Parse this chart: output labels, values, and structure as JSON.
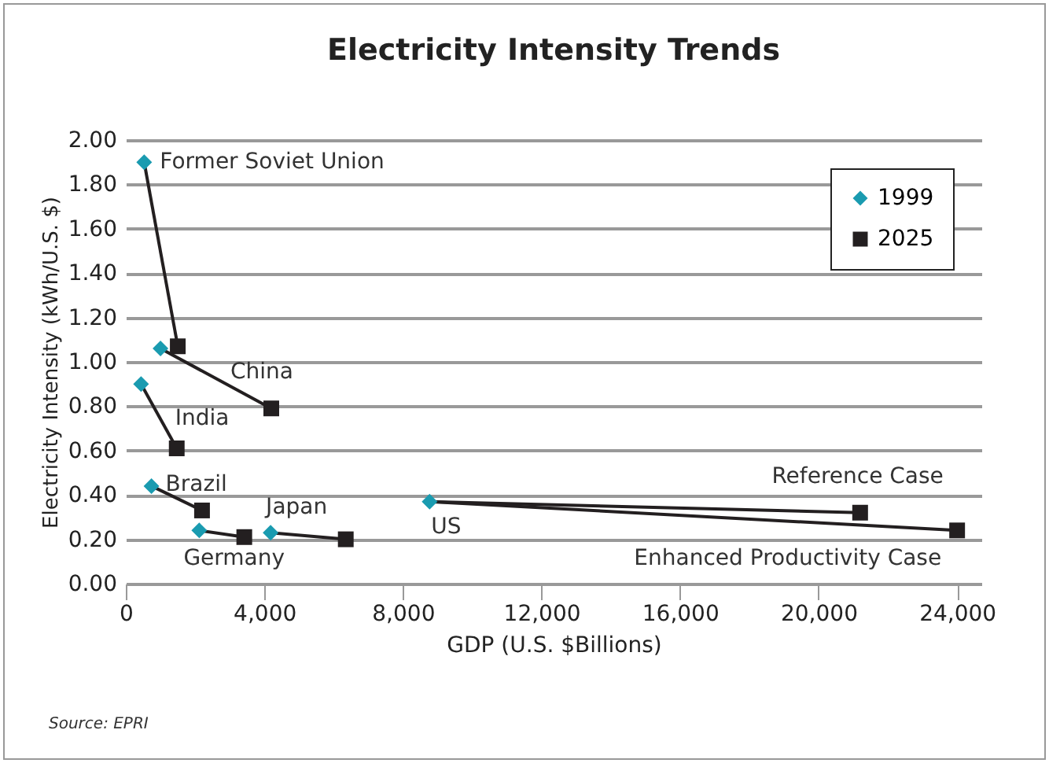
{
  "chart_data": {
    "type": "scatter",
    "title": "Electricity Intensity Trends",
    "xlabel": "GDP (U.S. $Billions)",
    "ylabel": "Electricity Intensity (kWh/U.S. $)",
    "xlim": [
      0,
      24700
    ],
    "ylim": [
      0,
      2.0
    ],
    "xticks": [
      {
        "value": 0,
        "label": "0"
      },
      {
        "value": 4000,
        "label": "4,000"
      },
      {
        "value": 8000,
        "label": "8,000"
      },
      {
        "value": 12000,
        "label": "12,000"
      },
      {
        "value": 16000,
        "label": "16,000"
      },
      {
        "value": 20000,
        "label": "20,000"
      },
      {
        "value": 24000,
        "label": "24,000"
      }
    ],
    "yticks": [
      {
        "value": 0,
        "label": "0.00"
      },
      {
        "value": 0.2,
        "label": "0.20"
      },
      {
        "value": 0.4,
        "label": "0.40"
      },
      {
        "value": 0.6,
        "label": "0.60"
      },
      {
        "value": 0.8,
        "label": "0.80"
      },
      {
        "value": 1.0,
        "label": "1.00"
      },
      {
        "value": 1.2,
        "label": "1.20"
      },
      {
        "value": 1.4,
        "label": "1.40"
      },
      {
        "value": 1.6,
        "label": "1.60"
      },
      {
        "value": 1.8,
        "label": "1.80"
      },
      {
        "value": 2.0,
        "label": "2.00"
      }
    ],
    "grid": "y",
    "legend": "top right",
    "series": [
      {
        "type": "line",
        "color": "#231f20",
        "x": [
          530,
          1500
        ],
        "values": [
          1.9,
          1.07
        ]
      },
      {
        "type": "line",
        "color": "#231f20",
        "x": [
          1000,
          4200
        ],
        "values": [
          1.06,
          0.79
        ]
      },
      {
        "type": "line",
        "color": "#231f20",
        "x": [
          440,
          1470
        ],
        "values": [
          0.9,
          0.61
        ]
      },
      {
        "type": "line",
        "color": "#231f20",
        "x": [
          740,
          2200
        ],
        "values": [
          0.44,
          0.33
        ]
      },
      {
        "type": "line",
        "color": "#231f20",
        "x": [
          2120,
          3420
        ],
        "values": [
          0.24,
          0.21
        ]
      },
      {
        "type": "line",
        "color": "#231f20",
        "x": [
          4180,
          6350
        ],
        "values": [
          0.23,
          0.2
        ]
      },
      {
        "type": "line",
        "color": "#231f20",
        "x": [
          8770,
          21200
        ],
        "values": [
          0.37,
          0.32
        ]
      },
      {
        "type": "line",
        "color": "#231f20",
        "x": [
          8770,
          24000
        ],
        "values": [
          0.37,
          0.24
        ]
      },
      {
        "name": "1999",
        "marker": "diamond",
        "color": "#1a9bb0",
        "x": [
          530,
          1000,
          440,
          740,
          2120,
          4180,
          8770
        ],
        "values": [
          1.9,
          1.06,
          0.9,
          0.44,
          0.24,
          0.23,
          0.37
        ]
      },
      {
        "name": "2025",
        "marker": "square",
        "color": "#231f20",
        "x": [
          1500,
          4200,
          1470,
          2200,
          3420,
          6350,
          21200,
          24000
        ],
        "values": [
          1.07,
          0.79,
          0.61,
          0.33,
          0.21,
          0.2,
          0.32,
          0.24
        ]
      }
    ],
    "annotations": [
      {
        "text": "Former Soviet Union",
        "x": 530,
        "y": 1.9
      },
      {
        "text": "China",
        "x": 4200,
        "y": 0.79
      },
      {
        "text": "India",
        "x": 1470,
        "y": 0.61
      },
      {
        "text": "Brazil",
        "x": 740,
        "y": 0.44
      },
      {
        "text": "Japan",
        "x": 4180,
        "y": 0.23
      },
      {
        "text": "Germany",
        "x": 2120,
        "y": 0.24
      },
      {
        "text": "US",
        "x": 8770,
        "y": 0.37
      },
      {
        "text": "Reference Case",
        "x": 21200,
        "y": 0.32
      },
      {
        "text": "Enhanced Productivity Case",
        "x": 24000,
        "y": 0.24
      },
      "Source:  EPRI"
    ]
  }
}
